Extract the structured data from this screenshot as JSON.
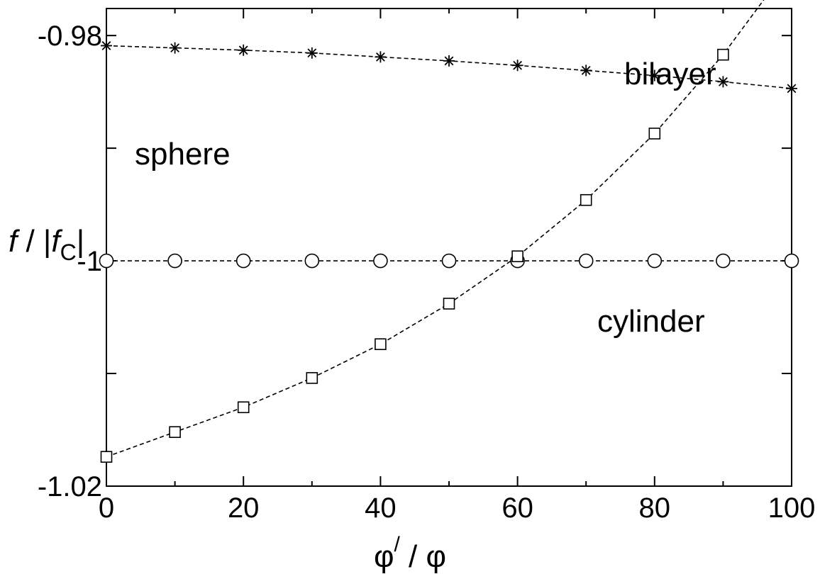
{
  "chart_data": {
    "type": "line",
    "xlabel": {
      "main": "φ",
      "sup": "/",
      "rest": " / φ"
    },
    "ylabel": {
      "f": "f",
      "mid": " / |",
      "fc": "f",
      "sub": "C",
      "end": "|"
    },
    "xlim": [
      0,
      100
    ],
    "ylim": [
      -1.02,
      -0.9776
    ],
    "grid": false,
    "x_ticks": [
      0,
      20,
      40,
      60,
      80,
      100
    ],
    "x_tick_labels": [
      "0",
      "20",
      "40",
      "60",
      "80",
      "100"
    ],
    "y_ticks": [
      -1.02,
      -1,
      -0.98
    ],
    "y_tick_labels": [
      "-1.02",
      "-1",
      "-0.98"
    ],
    "y_minor_ticks": [
      -1.01,
      -0.99
    ],
    "x": [
      0,
      10,
      20,
      30,
      40,
      50,
      60,
      70,
      80,
      90,
      100
    ],
    "series": [
      {
        "name": "sphere",
        "marker": "asterisk",
        "values": [
          -0.9809,
          -0.9811,
          -0.9813,
          -0.98155,
          -0.9819,
          -0.98225,
          -0.98265,
          -0.9831,
          -0.98355,
          -0.9841,
          -0.9847
        ]
      },
      {
        "name": "cylinder",
        "marker": "circle",
        "values": [
          -1.0,
          -1.0,
          -1.0,
          -1.0,
          -1.0,
          -1.0,
          -1.0,
          -1.0,
          -1.0,
          -1.0,
          -1.0
        ]
      },
      {
        "name": "bilayer",
        "marker": "square",
        "values": [
          -1.0174,
          -1.0152,
          -1.013,
          -1.0104,
          -1.0074,
          -1.0038,
          -0.9996,
          -0.9946,
          -0.9887,
          -0.9817,
          -0.9735
        ]
      }
    ],
    "labels": [
      {
        "text": "sphere",
        "series": "sphere"
      },
      {
        "text": "cylinder",
        "series": "cylinder"
      },
      {
        "text": "bilayer",
        "series": "bilayer"
      }
    ]
  }
}
